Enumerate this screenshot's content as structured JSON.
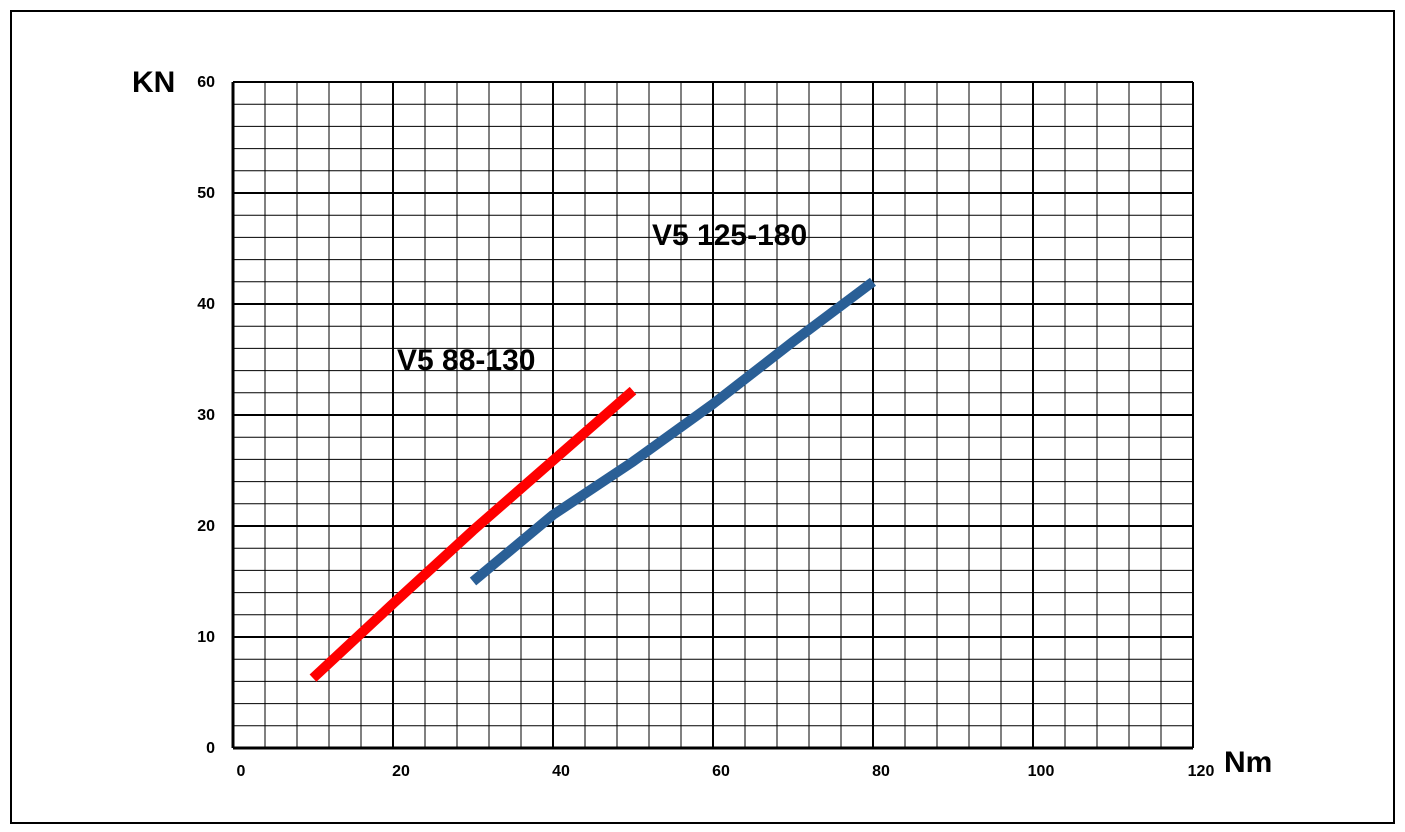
{
  "chart_data": {
    "type": "line",
    "title": "",
    "xlabel": "Nm",
    "ylabel": "KN",
    "xlim": [
      0,
      120
    ],
    "ylim": [
      0,
      60
    ],
    "x_ticks": [
      0,
      20,
      40,
      60,
      80,
      100,
      120
    ],
    "y_ticks": [
      0,
      10,
      20,
      30,
      40,
      50,
      60
    ],
    "x_minor_step": 4,
    "y_minor_step": 2,
    "grid": true,
    "legend": "none",
    "series": [
      {
        "name": "V5 88-130",
        "color": "#ff0000",
        "points": [
          [
            10,
            6.3
          ],
          [
            20,
            13.0
          ],
          [
            30,
            19.6
          ],
          [
            40,
            25.9
          ],
          [
            50,
            32.2
          ]
        ]
      },
      {
        "name": "V5 125-180",
        "color": "#2a5f96",
        "points": [
          [
            30,
            15.0
          ],
          [
            40,
            21.0
          ],
          [
            50,
            25.8
          ],
          [
            60,
            31.0
          ],
          [
            70,
            36.6
          ],
          [
            80,
            42.0
          ]
        ]
      }
    ]
  }
}
